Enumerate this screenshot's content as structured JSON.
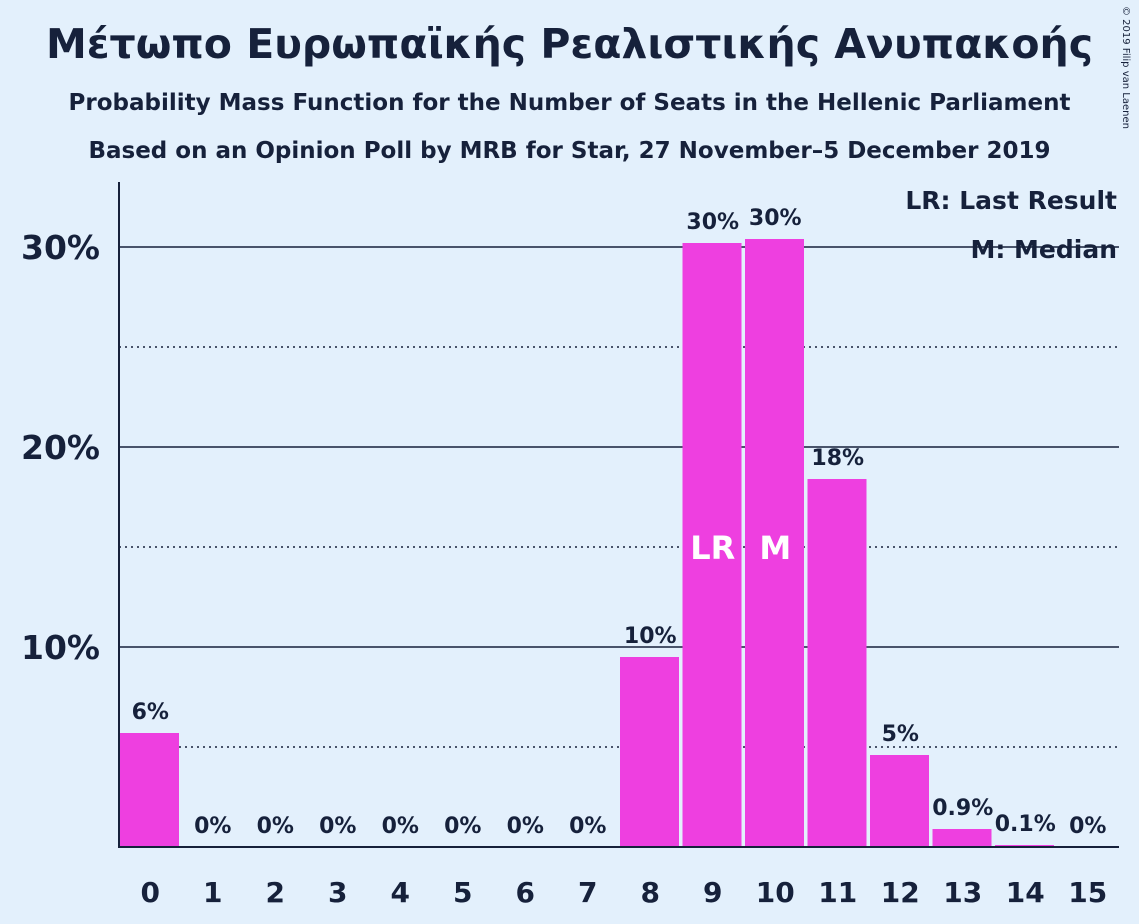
{
  "chart_data": {
    "type": "bar",
    "title": "Μέτωπο Ευρωπαϊκής Ρεαλιστικής Ανυπακοής",
    "subtitle": "Probability Mass Function for the Number of Seats in the Hellenic Parliament",
    "subtitle2": "Based on an Opinion Poll by MRB for Star, 27 November–5 December 2019",
    "copyright": "© 2019 Filip van Laenen",
    "categories": [
      "0",
      "1",
      "2",
      "3",
      "4",
      "5",
      "6",
      "7",
      "8",
      "9",
      "10",
      "11",
      "12",
      "13",
      "14",
      "15"
    ],
    "values": [
      5.7,
      0,
      0,
      0,
      0,
      0,
      0,
      0,
      9.5,
      30.2,
      30.4,
      18.4,
      4.6,
      0.9,
      0.1,
      0
    ],
    "data_labels": [
      "6%",
      "0%",
      "0%",
      "0%",
      "0%",
      "0%",
      "0%",
      "0%",
      "10%",
      "30%",
      "30%",
      "18%",
      "5%",
      "0.9%",
      "0.1%",
      "0%"
    ],
    "bar_annotations": {
      "9": "LR",
      "10": "M"
    },
    "yticks": [
      10,
      20,
      30
    ],
    "ytick_labels": [
      "10%",
      "20%",
      "30%"
    ],
    "minor_gridlines": [
      5,
      15,
      25
    ],
    "ylim": [
      0,
      33
    ],
    "legend": [
      "LR: Last Result",
      "M: Median"
    ],
    "legend_position": "top-right",
    "bar_color": "#ee3fe0",
    "background_color": "#e3f0fc"
  }
}
